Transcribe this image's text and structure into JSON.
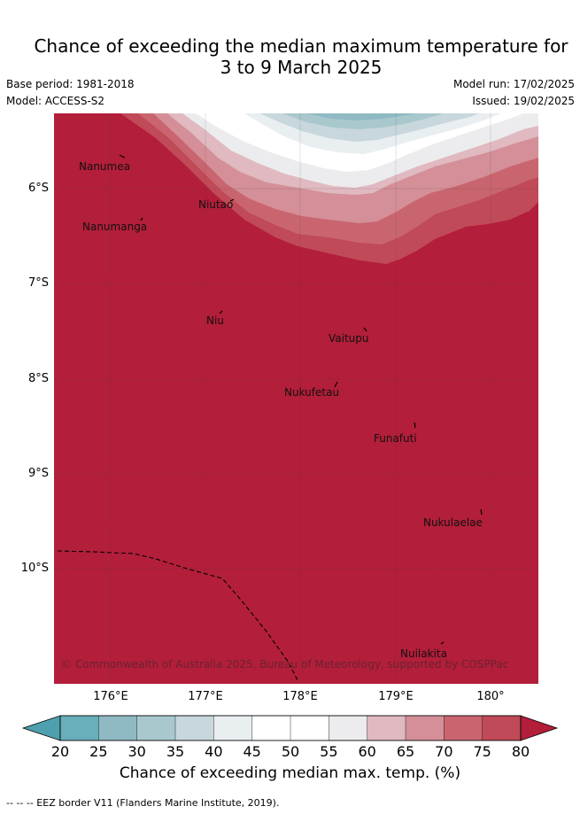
{
  "title_line1": "Chance of exceeding the median maximum temperature for",
  "title_line2": "3 to 9 March 2025",
  "base_period": "Base period: 1981-2018",
  "model": "Model: ACCESS-S2",
  "model_run": "Model run: 17/02/2025",
  "issued": "Issued: 19/02/2025",
  "map": {
    "latitude_labels": [
      "6°S",
      "7°S",
      "8°S",
      "9°S",
      "10°S"
    ],
    "longitude_labels": [
      "176°E",
      "177°E",
      "178°E",
      "179°E",
      "180°"
    ],
    "background_color": "#b31e3a",
    "places": [
      {
        "name": "Nanumea"
      },
      {
        "name": "Nanumanga"
      },
      {
        "name": "Niutao"
      },
      {
        "name": "Niu"
      },
      {
        "name": "Vaitupu"
      },
      {
        "name": "Nukufetau"
      },
      {
        "name": "Funafuti"
      },
      {
        "name": "Nukulaelae"
      },
      {
        "name": "Nuilakita"
      }
    ],
    "copyright": "© Commonwealth of Australia 2025, Bureau of Meteorology, supported by COSPPac"
  },
  "colorbar": {
    "labels": [
      "20",
      "25",
      "30",
      "35",
      "40",
      "45",
      "50",
      "55",
      "60",
      "65",
      "70",
      "75",
      "80"
    ],
    "colors": [
      "#69aebb",
      "#8fbac4",
      "#a9c8ce",
      "#c8d7dc",
      "#e9eef1",
      "#ffffff",
      "#ffffff",
      "#ececee",
      "#e0b9c1",
      "#d48f98",
      "#c9656f",
      "#c04a57",
      "#b31e3a"
    ],
    "low_extend_color": "#4fa0ae",
    "high_extend_color": "#b31e3a",
    "title": "Chance of exceeding median max. temp. (%)"
  },
  "footer": "--  --  -- EEZ border V11 (Flanders Marine Institute, 2019)."
}
